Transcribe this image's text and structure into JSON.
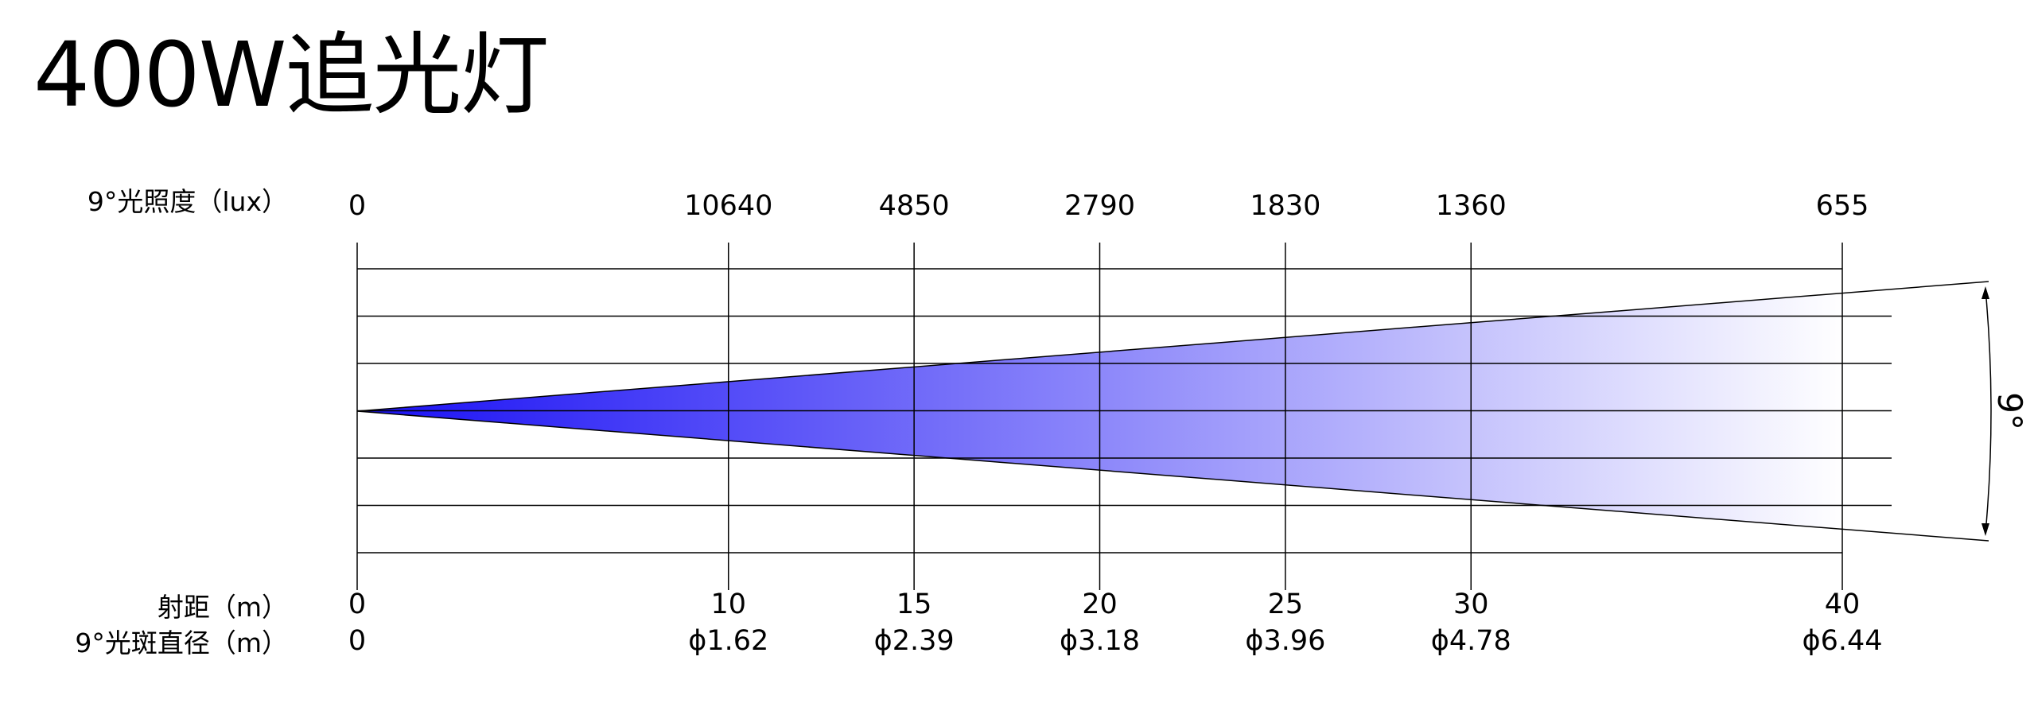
{
  "title": "400W追光灯",
  "beam_angle_label": "9°",
  "row_labels": {
    "illuminance": "9°光照度（lux）",
    "distance": "射距（m）",
    "spot_diameter": "9°光斑直径（m）"
  },
  "colors": {
    "beam_start": "#1a10f5",
    "beam_end": "#ffffff",
    "lines": "#000000"
  },
  "chart_data": {
    "type": "table",
    "beam_angle_deg": 9,
    "distance_range_m": [
      0,
      40
    ],
    "columns": [
      {
        "distance": 0,
        "distance_label": "0",
        "illuminance_label": "0",
        "diameter_label": "0"
      },
      {
        "distance": 10,
        "distance_label": "10",
        "illuminance_label": "10640",
        "diameter_label": "ϕ1.62"
      },
      {
        "distance": 15,
        "distance_label": "15",
        "illuminance_label": "4850",
        "diameter_label": "ϕ2.39"
      },
      {
        "distance": 20,
        "distance_label": "20",
        "illuminance_label": "2790",
        "diameter_label": "ϕ3.18"
      },
      {
        "distance": 25,
        "distance_label": "25",
        "illuminance_label": "1830",
        "diameter_label": "ϕ3.96"
      },
      {
        "distance": 30,
        "distance_label": "30",
        "illuminance_label": "1360",
        "diameter_label": "ϕ4.78"
      },
      {
        "distance": 40,
        "distance_label": "40",
        "illuminance_label": "655",
        "diameter_label": "ϕ6.44"
      }
    ]
  }
}
